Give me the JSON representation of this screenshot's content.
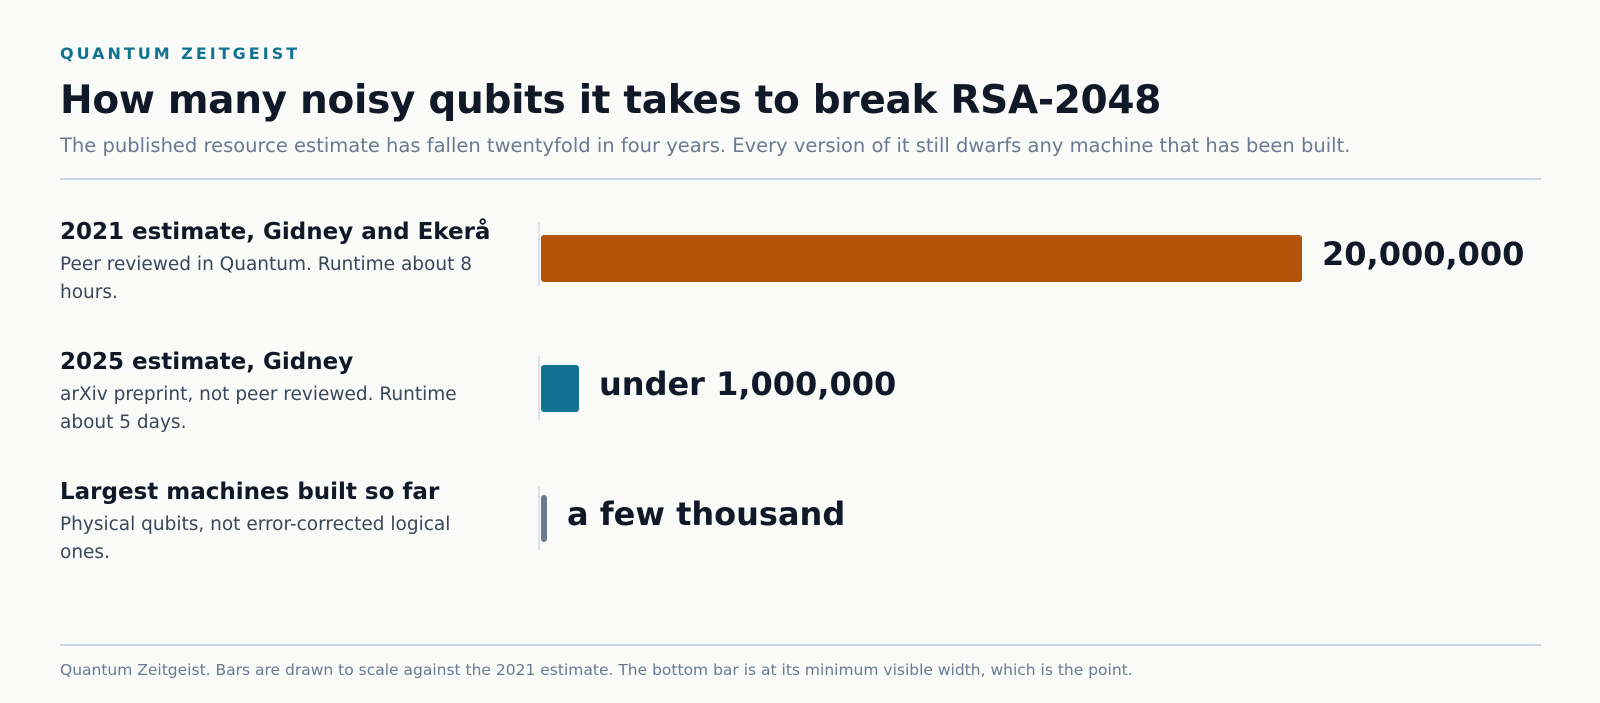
{
  "kicker": "QUANTUM ZEITGEIST",
  "title": "How many noisy qubits it takes to break RSA-2048",
  "subtitle": "The published resource estimate has fallen twentyfold in four years. Every version of it still dwarfs any machine that has been built.",
  "footer": "Quantum Zeitgeist. Bars are drawn to scale against the 2021 estimate. The bottom bar is at its minimum visible width, which is the point.",
  "chart_data": {
    "type": "bar",
    "orientation": "horizontal",
    "categories": [
      "2021 estimate, Gidney and Ekerå",
      "2025 estimate, Gidney",
      "Largest machines built so far"
    ],
    "notes": [
      "Peer reviewed in Quantum. Runtime about 8 hours.",
      "arXiv preprint, not peer reviewed. Runtime about 5 days.",
      "Physical qubits, not error-corrected logical ones."
    ],
    "values": [
      20000000,
      1000000,
      5000
    ],
    "value_labels": [
      "20,000,000",
      "under 1,000,000",
      "a few thousand"
    ],
    "colors": [
      "#b4530a",
      "#117391",
      "#6b7a90"
    ],
    "xlim": [
      0,
      20000000
    ],
    "grid": false
  }
}
